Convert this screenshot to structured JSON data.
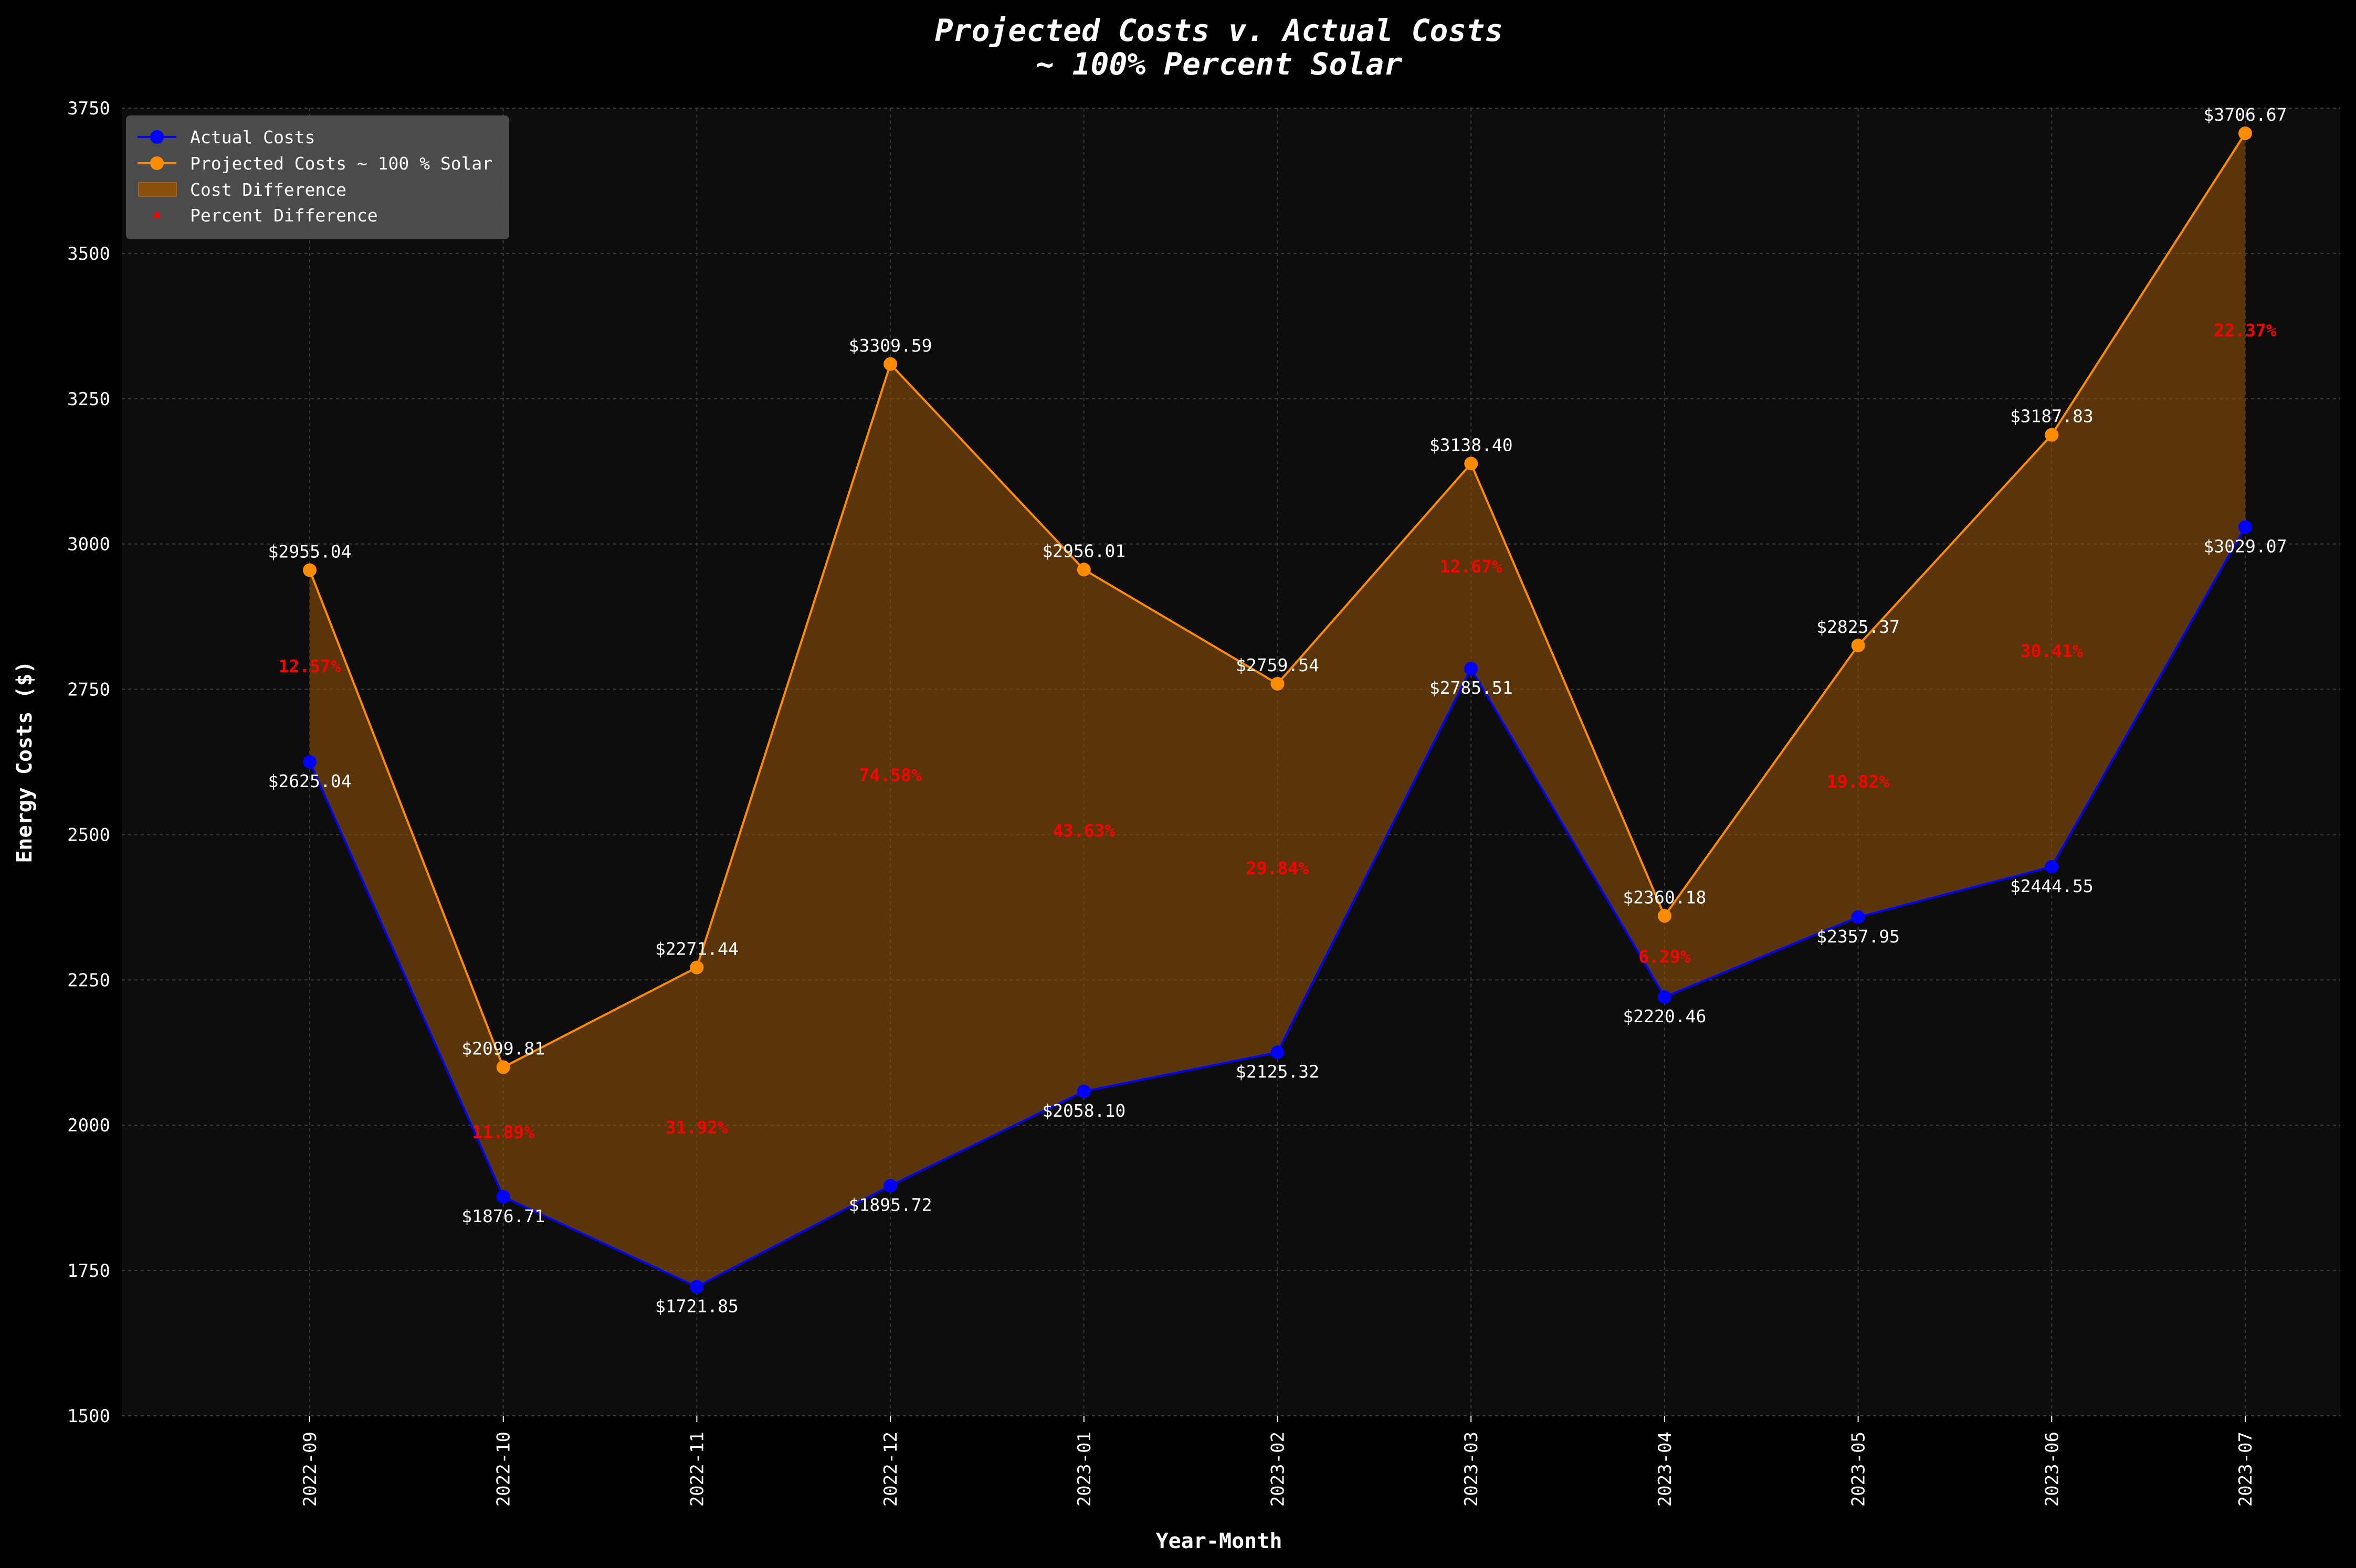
{
  "chart_data": {
    "type": "area",
    "title": "Projected Costs v. Actual Costs",
    "subtitle": "~ 100% Percent Solar",
    "xlabel": "Year-Month",
    "ylabel": "Energy Costs ($)",
    "ylim": [
      1500,
      3750
    ],
    "yticks": [
      1500,
      1750,
      2000,
      2250,
      2500,
      2750,
      3000,
      3250,
      3500,
      3750
    ],
    "grid": true,
    "legend_position": "top-left",
    "categories": [
      "2022-09",
      "2022-10",
      "2022-11",
      "2022-12",
      "2023-01",
      "2023-02",
      "2023-03",
      "2023-04",
      "2023-05",
      "2023-06",
      "2023-07"
    ],
    "series": [
      {
        "name": "Actual Costs",
        "color": "#0000ff",
        "values": [
          2625.04,
          1876.71,
          1721.85,
          1895.72,
          2058.1,
          2125.32,
          2785.51,
          2220.46,
          2357.95,
          2444.55,
          3029.07
        ],
        "labels": [
          "$2625.04",
          "$1876.71",
          "$1721.85",
          "$1895.72",
          "$2058.10",
          "$2125.32",
          "$2785.51",
          "$2220.46",
          "$2357.95",
          "$2444.55",
          "$3029.07"
        ]
      },
      {
        "name": "Projected Costs ~ 100 % Solar",
        "color": "#ff8c00",
        "values": [
          2955.04,
          2099.81,
          2271.44,
          3309.59,
          2956.01,
          2759.54,
          3138.4,
          2360.18,
          2825.37,
          3187.83,
          3706.67
        ],
        "labels": [
          "$2955.04",
          "$2099.81",
          "$2271.44",
          "$3309.59",
          "$2956.01",
          "$2759.54",
          "$3138.40",
          "$2360.18",
          "$2825.37",
          "$3187.83",
          "$3706.67"
        ]
      }
    ],
    "fill_between": {
      "name": "Cost Difference",
      "color": "#8b4f0c"
    },
    "percent_difference": {
      "name": "Percent Difference",
      "color": "#ff0000",
      "labels": [
        "12.57%",
        "11.89%",
        "31.92%",
        "74.58%",
        "43.63%",
        "29.84%",
        "12.67%",
        "6.29%",
        "19.82%",
        "30.41%",
        "22.37%"
      ]
    }
  },
  "colors": {
    "background": "#000000",
    "plot_background": "#0d0d0d",
    "grid": "#3a3a3a",
    "text": "#ffffff",
    "legend_background": "#4f4f4f"
  }
}
